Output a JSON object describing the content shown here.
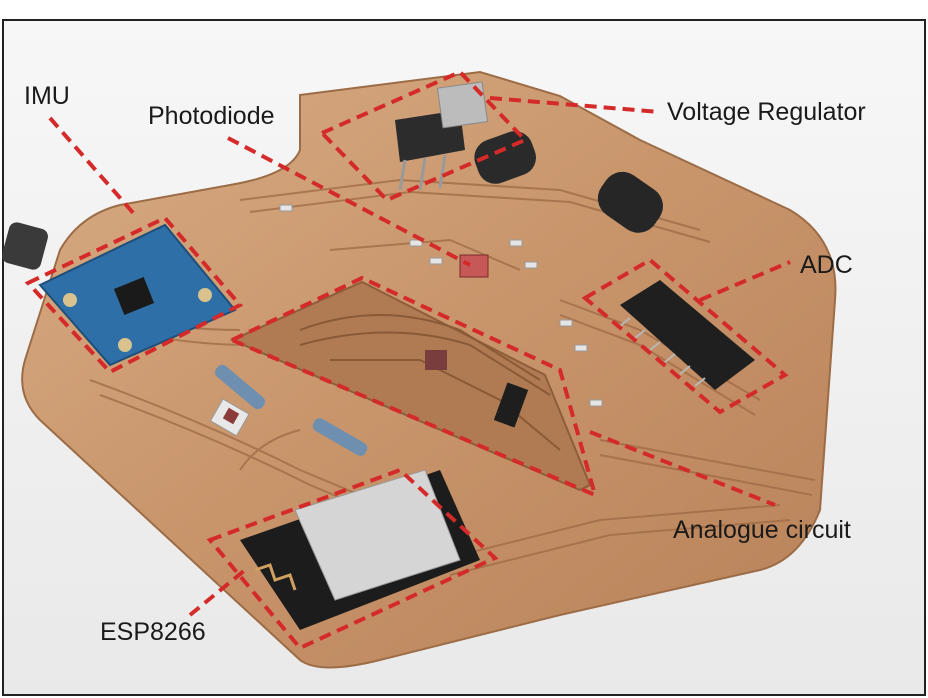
{
  "labels": {
    "imu": "IMU",
    "photodiode": "Photodiode",
    "voltage_regulator": "Voltage Regulator",
    "adc": "ADC",
    "analogue_circuit": "Analogue circuit",
    "esp8266": "ESP8266"
  },
  "colors": {
    "annotation": "#d42a2a",
    "copper": "#c99a72",
    "copper_dark": "#a9744e",
    "background": "#f2f2f2",
    "border": "#222222"
  }
}
